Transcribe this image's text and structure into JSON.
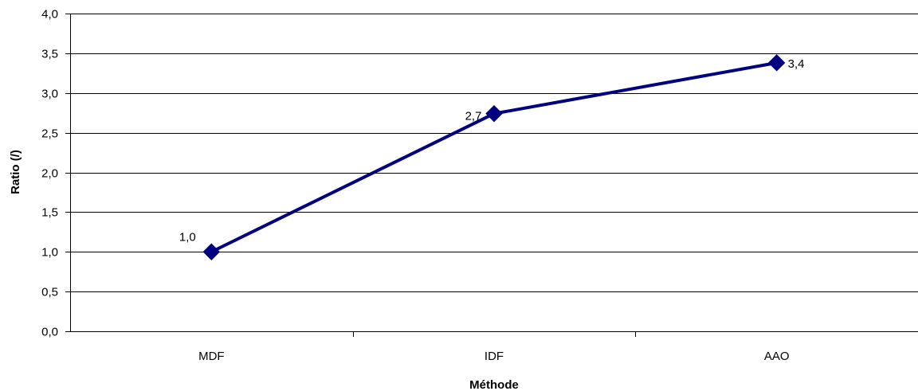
{
  "chart_data": {
    "type": "line",
    "categories": [
      "MDF",
      "IDF",
      "AAO"
    ],
    "series": [
      {
        "values": [
          1.0,
          2.74,
          3.38
        ]
      }
    ],
    "data_labels": [
      "1,0",
      "2,7",
      "3,4"
    ],
    "ylim": [
      0,
      4
    ],
    "yticks": [
      "0,0",
      "0,5",
      "1,0",
      "1,5",
      "2,0",
      "2,5",
      "3,0",
      "3,5",
      "4,0"
    ],
    "xlabel": "Méthode",
    "ylabel": "Ratio (/)",
    "grid": "horizontal",
    "legend": "none",
    "colors": {
      "series": "#000080",
      "grid": "#000000"
    }
  }
}
